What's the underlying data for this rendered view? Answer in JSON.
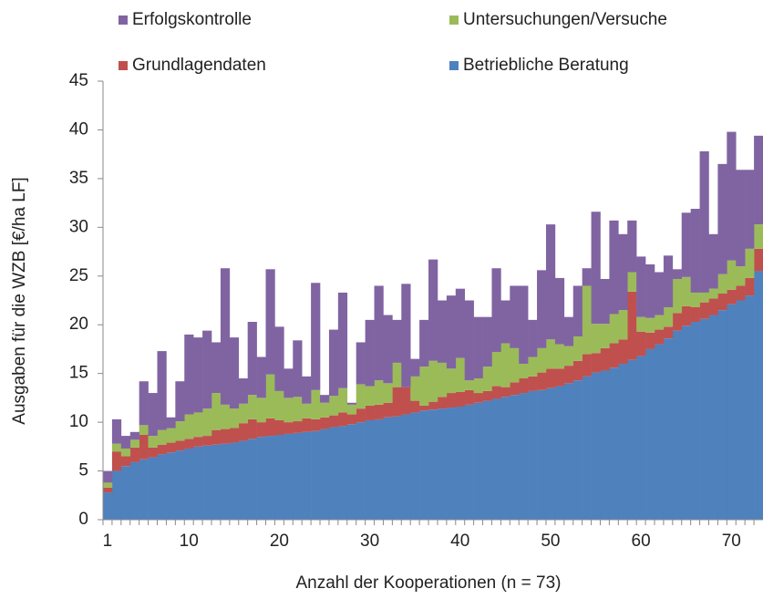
{
  "chart_data": {
    "type": "stacked-bar",
    "y_label": "Ausgaben für die WZB [€/ha LF]",
    "x_label": "Anzahl der Kooperationen (n = 73)",
    "x": [
      1,
      2,
      3,
      4,
      5,
      6,
      7,
      8,
      9,
      10,
      11,
      12,
      13,
      14,
      15,
      16,
      17,
      18,
      19,
      20,
      21,
      22,
      23,
      24,
      25,
      26,
      27,
      28,
      29,
      30,
      31,
      32,
      33,
      34,
      35,
      36,
      37,
      38,
      39,
      40,
      41,
      42,
      43,
      44,
      45,
      46,
      47,
      48,
      49,
      50,
      51,
      52,
      53,
      54,
      55,
      56,
      57,
      58,
      59,
      60,
      61,
      62,
      63,
      64,
      65,
      66,
      67,
      68,
      69,
      70,
      71,
      72,
      73
    ],
    "xlim": [
      0.5,
      73.5
    ],
    "xticks": [
      1,
      10,
      20,
      30,
      40,
      50,
      60,
      70
    ],
    "ylim": [
      0,
      45
    ],
    "yticks": [
      0,
      5,
      10,
      15,
      20,
      25,
      30,
      35,
      40,
      45
    ],
    "series": [
      {
        "name": "Betriebliche Beratung",
        "color": "#4f81bd",
        "values": [
          2.8,
          5,
          5.5,
          5.9,
          6.2,
          6.4,
          6.7,
          6.9,
          7.1,
          7.3,
          7.5,
          7.6,
          7.7,
          7.8,
          7.9,
          8.1,
          8.3,
          8.5,
          8.6,
          8.7,
          8.8,
          8.9,
          9.0,
          9.1,
          9.3,
          9.5,
          9.6,
          9.8,
          10.0,
          10.2,
          10.3,
          10.5,
          10.6,
          10.8,
          11.0,
          11.2,
          11.3,
          11.4,
          11.5,
          11.6,
          11.8,
          12.0,
          12.2,
          12.4,
          12.6,
          12.8,
          13.0,
          13.2,
          13.3,
          13.5,
          13.7,
          14.0,
          14.3,
          14.7,
          15.1,
          15.3,
          15.6,
          16.0,
          16.4,
          16.8,
          17.5,
          18.0,
          18.6,
          19.4,
          19.9,
          20.3,
          20.6,
          21.0,
          21.5,
          22.1,
          22.5,
          23.0,
          25.5
        ]
      },
      {
        "name": "Grundlagendaten",
        "color": "#c0504d",
        "values": [
          0.5,
          2,
          1,
          1.5,
          2.5,
          1,
          1,
          1,
          1,
          1,
          1,
          1,
          1.5,
          1.5,
          1.5,
          1.8,
          2,
          1.5,
          1.8,
          1.5,
          1.2,
          1.2,
          1.4,
          1.2,
          1.2,
          1.2,
          1.4,
          1,
          1.4,
          1.5,
          1.5,
          1.5,
          3,
          2.8,
          1.2,
          0.5,
          0.8,
          1.2,
          1.5,
          1.5,
          1.5,
          1,
          1,
          1.3,
          1,
          1.3,
          1.5,
          1.5,
          1.8,
          2,
          1.8,
          1.8,
          2,
          2.3,
          2,
          2.3,
          2.5,
          2.5,
          7,
          2.5,
          1.7,
          1.5,
          1.2,
          1.8,
          2,
          1.5,
          1.7,
          1.7,
          1.7,
          1.5,
          1.5,
          1.8,
          2.3
        ]
      },
      {
        "name": "Untersuchungen/Versuche",
        "color": "#9bbb59",
        "values": [
          0.5,
          0.8,
          0.8,
          0.8,
          1,
          1.2,
          1.5,
          1.5,
          2,
          2.5,
          2.5,
          2.8,
          3.8,
          2.5,
          2,
          2,
          2.5,
          2.5,
          4.5,
          3,
          2.5,
          2.5,
          1.5,
          3,
          1.5,
          2,
          2.5,
          1,
          2.5,
          2,
          2.5,
          2,
          2.5,
          0,
          2.5,
          4,
          4.2,
          3.5,
          2.5,
          3.5,
          1,
          1.5,
          2.5,
          3.5,
          4.5,
          3.5,
          1.5,
          2,
          2.5,
          3,
          2.5,
          2,
          2.5,
          7,
          3,
          2.5,
          3,
          3,
          2,
          1.5,
          1.5,
          1.5,
          2,
          3.5,
          3,
          1.5,
          1,
          1,
          2,
          3,
          2,
          3,
          2.5
        ]
      },
      {
        "name": "Erfolgskontrolle",
        "color": "#8064a2",
        "values": [
          1.2,
          2.5,
          1.3,
          0.8,
          4.5,
          4.4,
          8.1,
          1.1,
          4.1,
          8.2,
          7.7,
          8,
          5.2,
          14,
          7.3,
          2.6,
          7.5,
          4.2,
          10.8,
          6.6,
          3,
          5.8,
          2.8,
          11,
          0.8,
          6.8,
          9.8,
          0.2,
          4.3,
          6.8,
          9.7,
          7,
          4.4,
          10.6,
          1.8,
          4.8,
          10.4,
          6.4,
          7.5,
          7.1,
          8.2,
          6.3,
          5.1,
          8.6,
          4.4,
          6.4,
          8,
          3.8,
          8,
          11.8,
          6.8,
          3,
          5.2,
          1.8,
          11.5,
          4.6,
          9.6,
          7.8,
          5.3,
          6.2,
          5.5,
          4.4,
          5.3,
          1,
          6.6,
          8.6,
          14.5,
          5.6,
          11.3,
          13.2,
          9.9,
          8.1,
          9.1
        ]
      }
    ]
  }
}
